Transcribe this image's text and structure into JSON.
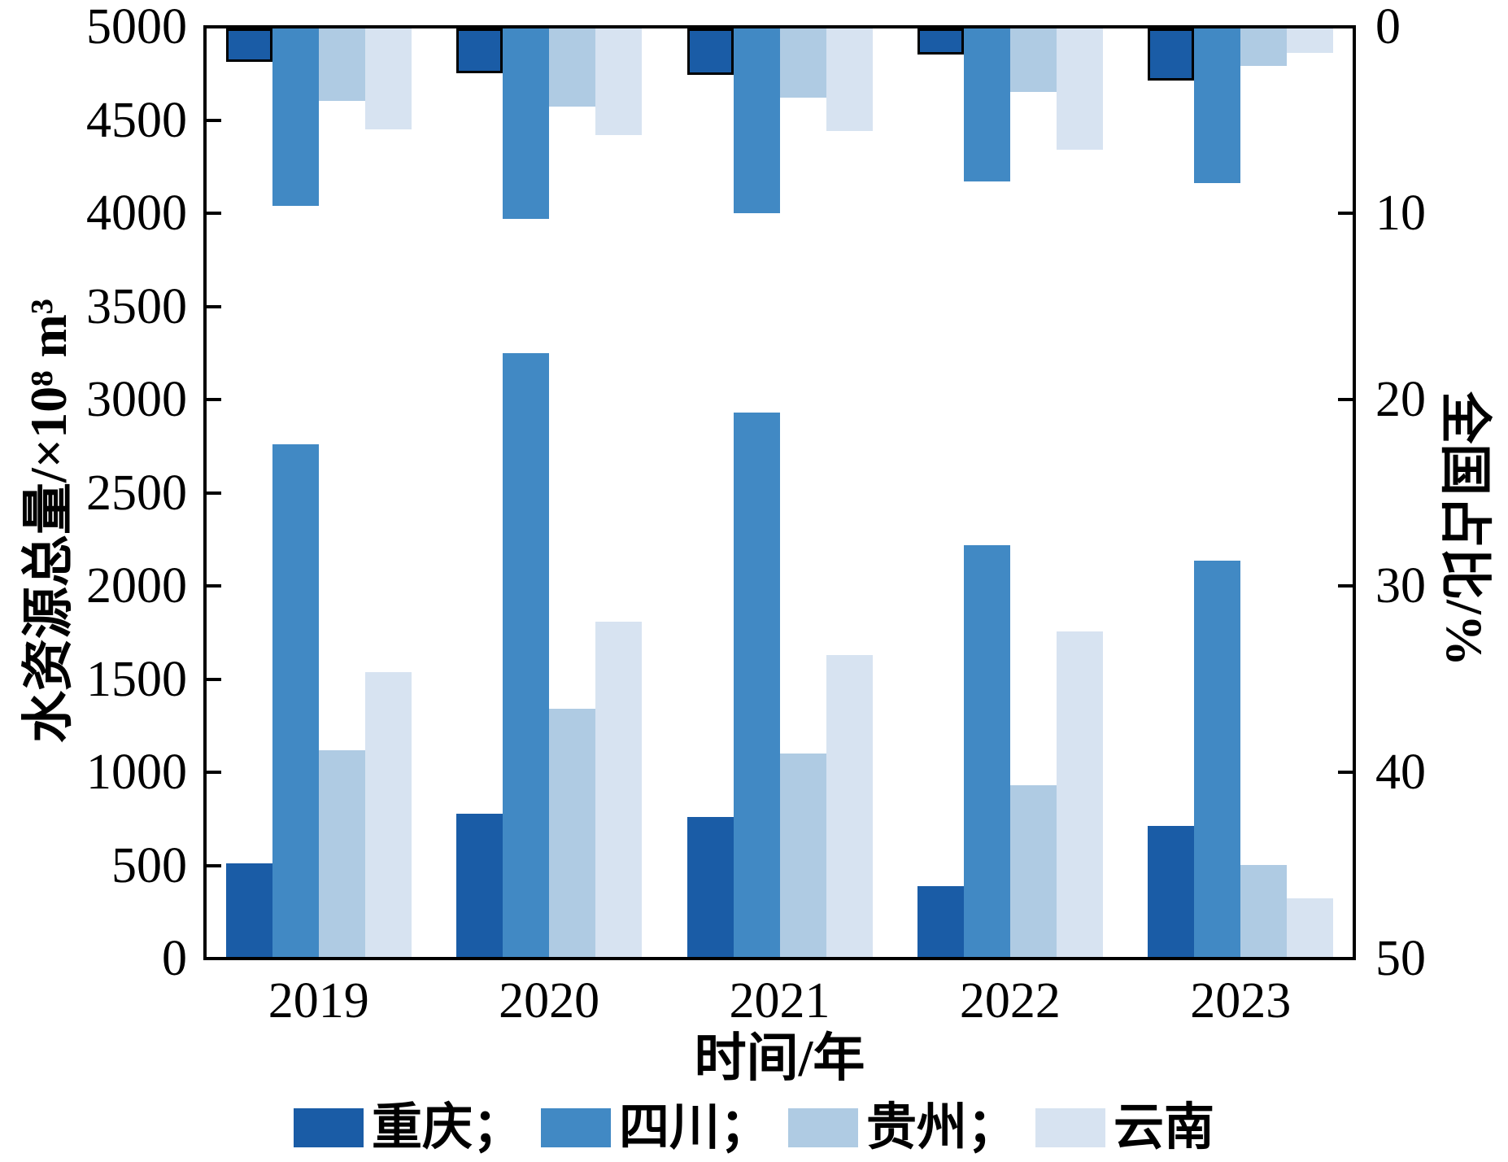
{
  "figure": {
    "background": "#ffffff"
  },
  "chart_data": {
    "type": "bar",
    "title": "",
    "xlabel": "时间/年",
    "categories": [
      "2019",
      "2020",
      "2021",
      "2022",
      "2023"
    ],
    "left_axis": {
      "label": "水资源总量/×10⁸ m³",
      "min": 0,
      "max": 5000,
      "ticks": [
        0,
        500,
        1000,
        1500,
        2000,
        2500,
        3000,
        3500,
        4000,
        4500,
        5000
      ],
      "orientation": "bars grow up from bottom"
    },
    "right_axis": {
      "label": "全国占比/%",
      "min": 0,
      "max": 50,
      "ticks": [
        0,
        10,
        20,
        30,
        40,
        50
      ],
      "inverted": true,
      "orientation": "bars hang down from top"
    },
    "grid": false,
    "legend": {
      "position": "bottom",
      "entries": [
        "重庆；",
        "四川；",
        "贵州；",
        "云南"
      ]
    },
    "series_colors": {
      "重庆": "#1A5CA6",
      "四川": "#4189C4",
      "贵州": "#AFCBE3",
      "云南": "#D7E3F1"
    },
    "series": [
      {
        "name": "重庆",
        "axis": "left",
        "unit": "×10⁸ m³",
        "color": "#1A5CA6",
        "values": [
          500,
          770,
          750,
          380,
          705
        ]
      },
      {
        "name": "四川",
        "axis": "left",
        "unit": "×10⁸ m³",
        "color": "#4189C4",
        "values": [
          2750,
          3240,
          2920,
          2210,
          2125
        ]
      },
      {
        "name": "贵州",
        "axis": "left",
        "unit": "×10⁸ m³",
        "color": "#AFCBE3",
        "values": [
          1110,
          1330,
          1090,
          920,
          495
        ]
      },
      {
        "name": "云南",
        "axis": "left",
        "unit": "×10⁸ m³",
        "color": "#D7E3F1",
        "values": [
          1530,
          1800,
          1620,
          1745,
          315
        ]
      },
      {
        "name": "重庆全国占比",
        "axis": "right",
        "unit": "%",
        "color": "#1A5CA6",
        "outlined": true,
        "values": [
          1.8,
          2.4,
          2.5,
          1.4,
          2.8
        ]
      },
      {
        "name": "四川全国占比",
        "axis": "right",
        "unit": "%",
        "color": "#4189C4",
        "values": [
          9.5,
          10.2,
          9.9,
          8.2,
          8.3
        ]
      },
      {
        "name": "贵州全国占比",
        "axis": "right",
        "unit": "%",
        "color": "#AFCBE3",
        "values": [
          3.9,
          4.2,
          3.7,
          3.4,
          2.0
        ]
      },
      {
        "name": "云南全国占比",
        "axis": "right",
        "unit": "%",
        "color": "#D7E3F1",
        "values": [
          5.4,
          5.7,
          5.5,
          6.5,
          1.3
        ]
      }
    ]
  }
}
